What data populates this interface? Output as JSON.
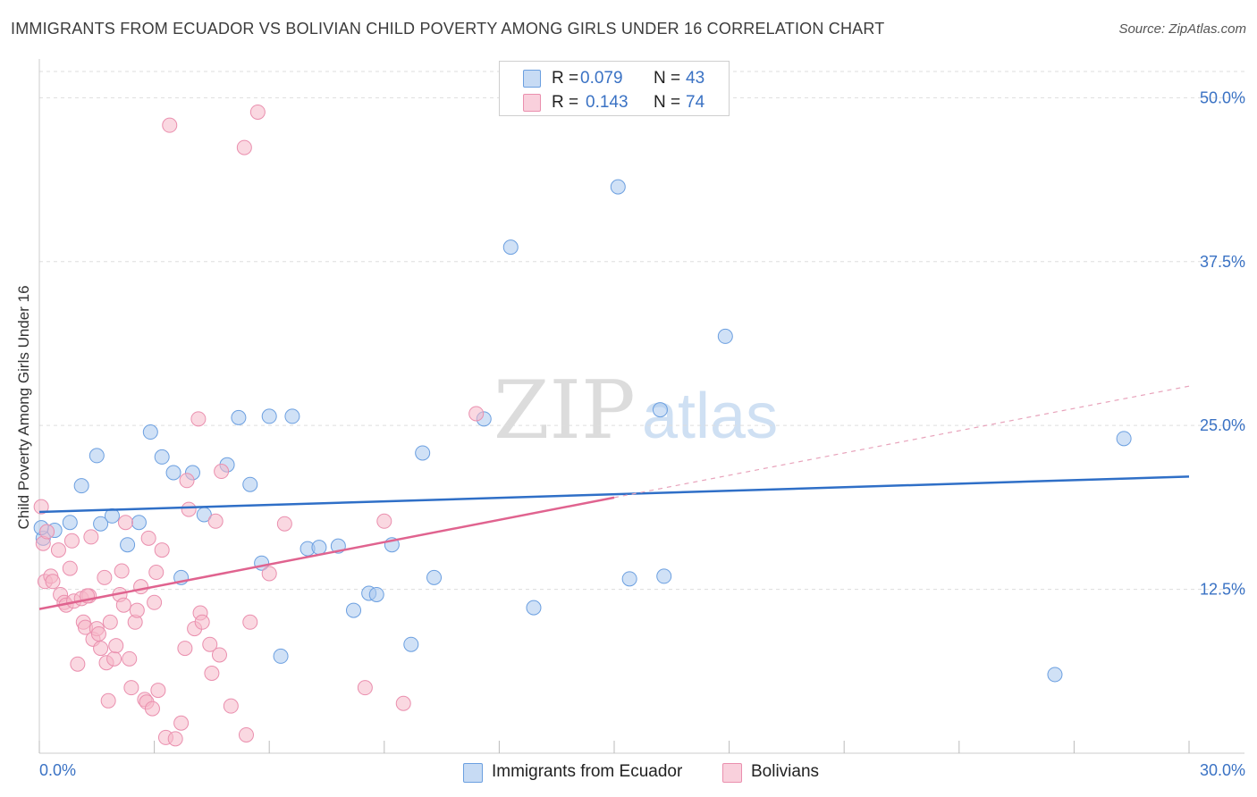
{
  "title": "IMMIGRANTS FROM ECUADOR VS BOLIVIAN CHILD POVERTY AMONG GIRLS UNDER 16 CORRELATION CHART",
  "source": "Source: ZipAtlas.com",
  "watermark": {
    "zip": "ZIP",
    "atlas": "atlas"
  },
  "legend_top": {
    "rows": [
      {
        "r_label": "R =",
        "r_value": "0.079",
        "n_label": "N =",
        "n_value": "43",
        "color": "#aac8ee"
      },
      {
        "r_label": "R =",
        "r_value": "0.143",
        "n_label": "N =",
        "n_value": "74",
        "color": "#f5b8c8"
      }
    ]
  },
  "chart_data": {
    "type": "scatter",
    "title": "IMMIGRANTS FROM ECUADOR VS BOLIVIAN CHILD POVERTY AMONG GIRLS UNDER 16 CORRELATION CHART",
    "xlabel": "",
    "ylabel": "Child Poverty Among Girls Under 16",
    "xlim": [
      0,
      30
    ],
    "ylim": [
      0,
      52
    ],
    "x_tick_labels": [
      "0.0%",
      "30.0%"
    ],
    "y_ticks": [
      12.5,
      25.0,
      37.5,
      50.0
    ],
    "y_tick_labels": [
      "12.5%",
      "25.0%",
      "37.5%",
      "50.0%"
    ],
    "grid": true,
    "legend_position": "bottom",
    "series": [
      {
        "name": "Immigrants from Ecuador",
        "color": "#6b9fe0",
        "fill": "#aac8ee",
        "r": 0.079,
        "n": 43,
        "trend": {
          "x": [
            0,
            30
          ],
          "y": [
            18.4,
            21.1
          ],
          "color": "#2f6fc7"
        },
        "points": [
          [
            0.1,
            16.4
          ],
          [
            0.4,
            17.0
          ],
          [
            0.8,
            17.6
          ],
          [
            1.1,
            20.4
          ],
          [
            1.5,
            22.7
          ],
          [
            1.6,
            17.5
          ],
          [
            1.9,
            18.1
          ],
          [
            2.3,
            15.9
          ],
          [
            2.6,
            17.6
          ],
          [
            2.9,
            24.5
          ],
          [
            3.2,
            22.6
          ],
          [
            3.5,
            21.4
          ],
          [
            3.7,
            13.4
          ],
          [
            4.0,
            21.4
          ],
          [
            4.3,
            18.2
          ],
          [
            4.9,
            22.0
          ],
          [
            5.2,
            25.6
          ],
          [
            5.5,
            20.5
          ],
          [
            5.8,
            14.5
          ],
          [
            6.0,
            25.7
          ],
          [
            6.3,
            7.4
          ],
          [
            6.6,
            25.7
          ],
          [
            7.0,
            15.6
          ],
          [
            7.3,
            15.7
          ],
          [
            7.8,
            15.8
          ],
          [
            8.2,
            10.9
          ],
          [
            8.6,
            12.2
          ],
          [
            8.8,
            12.1
          ],
          [
            9.2,
            15.9
          ],
          [
            9.7,
            8.3
          ],
          [
            10.0,
            22.9
          ],
          [
            10.3,
            13.4
          ],
          [
            11.6,
            25.5
          ],
          [
            12.3,
            38.6
          ],
          [
            12.9,
            11.1
          ],
          [
            15.1,
            43.2
          ],
          [
            15.4,
            13.3
          ],
          [
            16.2,
            26.2
          ],
          [
            16.3,
            13.5
          ],
          [
            17.9,
            31.8
          ],
          [
            26.5,
            6.0
          ],
          [
            28.3,
            24.0
          ],
          [
            0.05,
            17.2
          ]
        ]
      },
      {
        "name": "Bolivians",
        "color": "#ea8fae",
        "fill": "#f5b8c8",
        "r": 0.143,
        "n": 74,
        "trend": {
          "x": [
            0,
            15
          ],
          "y": [
            11.0,
            19.5
          ],
          "color": "#e0638f"
        },
        "trend_dashed": {
          "x": [
            15,
            30
          ],
          "y": [
            19.5,
            28.0
          ],
          "color": "#e8a3bb"
        },
        "points": [
          [
            0.05,
            18.8
          ],
          [
            0.1,
            16.0
          ],
          [
            0.15,
            13.1
          ],
          [
            0.2,
            16.9
          ],
          [
            0.3,
            13.5
          ],
          [
            0.35,
            13.1
          ],
          [
            0.5,
            15.5
          ],
          [
            0.55,
            12.1
          ],
          [
            0.65,
            11.5
          ],
          [
            0.7,
            11.3
          ],
          [
            0.8,
            14.1
          ],
          [
            0.85,
            16.2
          ],
          [
            0.9,
            11.6
          ],
          [
            1.0,
            6.8
          ],
          [
            1.1,
            11.8
          ],
          [
            1.15,
            10.0
          ],
          [
            1.2,
            9.6
          ],
          [
            1.3,
            12.0
          ],
          [
            1.35,
            16.5
          ],
          [
            1.4,
            8.7
          ],
          [
            1.5,
            9.5
          ],
          [
            1.55,
            9.1
          ],
          [
            1.6,
            8.0
          ],
          [
            1.7,
            13.4
          ],
          [
            1.75,
            6.9
          ],
          [
            1.8,
            4.0
          ],
          [
            1.85,
            10.0
          ],
          [
            1.95,
            7.2
          ],
          [
            2.0,
            8.2
          ],
          [
            2.1,
            12.1
          ],
          [
            2.15,
            13.9
          ],
          [
            2.2,
            11.3
          ],
          [
            2.25,
            17.6
          ],
          [
            2.35,
            7.2
          ],
          [
            2.4,
            5.0
          ],
          [
            2.5,
            10.0
          ],
          [
            2.55,
            10.9
          ],
          [
            2.65,
            12.7
          ],
          [
            2.75,
            4.1
          ],
          [
            2.8,
            3.9
          ],
          [
            2.85,
            16.4
          ],
          [
            2.95,
            3.4
          ],
          [
            3.0,
            11.5
          ],
          [
            3.05,
            13.8
          ],
          [
            3.1,
            4.8
          ],
          [
            3.2,
            15.5
          ],
          [
            3.3,
            1.2
          ],
          [
            3.4,
            47.9
          ],
          [
            3.55,
            1.1
          ],
          [
            3.7,
            2.3
          ],
          [
            3.8,
            8.0
          ],
          [
            3.85,
            20.8
          ],
          [
            3.9,
            18.6
          ],
          [
            4.05,
            9.5
          ],
          [
            4.15,
            25.5
          ],
          [
            4.2,
            10.7
          ],
          [
            4.25,
            10.0
          ],
          [
            4.45,
            8.3
          ],
          [
            4.5,
            6.1
          ],
          [
            4.6,
            17.7
          ],
          [
            4.7,
            7.5
          ],
          [
            4.75,
            21.5
          ],
          [
            5.0,
            3.6
          ],
          [
            5.35,
            46.2
          ],
          [
            5.4,
            1.4
          ],
          [
            5.5,
            10.0
          ],
          [
            5.7,
            48.9
          ],
          [
            6.0,
            13.7
          ],
          [
            6.4,
            17.5
          ],
          [
            8.5,
            5.0
          ],
          [
            9.0,
            17.7
          ],
          [
            9.5,
            3.8
          ],
          [
            11.4,
            25.9
          ],
          [
            1.25,
            12.0
          ]
        ]
      }
    ]
  }
}
